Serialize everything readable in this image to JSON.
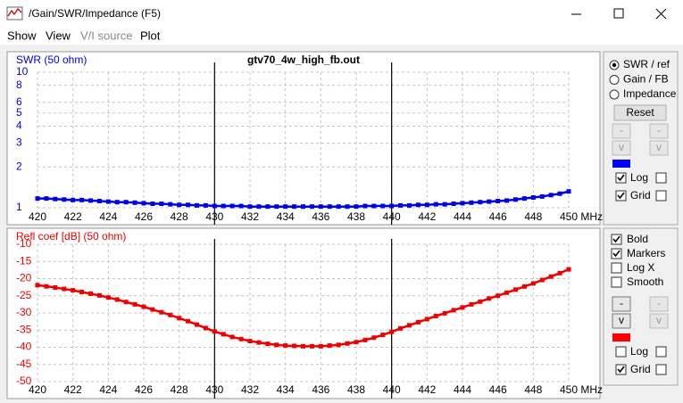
{
  "window": {
    "title": "/Gain/SWR/Impedance (F5)",
    "menu": [
      "Show",
      "View",
      "V/I source",
      "Plot"
    ],
    "controls_top": {
      "radios": [
        "SWR / ref",
        "Gain / FB",
        "Impedance"
      ],
      "selected": 0,
      "reset": "Reset",
      "buttons": [
        "-",
        "-",
        "v",
        "v"
      ],
      "color": "#0000ff",
      "log_label": "Log",
      "log": [
        true,
        false
      ],
      "grid_label": "Grid",
      "grid": [
        true,
        false
      ]
    },
    "controls_bottom": {
      "checks": [
        {
          "label": "Bold",
          "checked": true
        },
        {
          "label": "Markers",
          "checked": true
        },
        {
          "label": "Log X",
          "checked": false
        },
        {
          "label": "Smooth",
          "checked": false
        }
      ],
      "buttons": [
        "-",
        "-",
        "v",
        "v"
      ],
      "color": "#ff0000",
      "log_label": "Log",
      "log": [
        false,
        false
      ],
      "grid_label": "Grid",
      "grid": [
        true,
        false
      ]
    }
  },
  "chart_data": [
    {
      "type": "line",
      "title": "gtv70_4w_high_fb.out",
      "y_label": "SWR (50 ohm)",
      "x": [
        420,
        420.5,
        421,
        421.5,
        422,
        422.5,
        423,
        423.5,
        424,
        424.5,
        425,
        425.5,
        426,
        426.5,
        427,
        427.5,
        428,
        428.5,
        429,
        429.5,
        430,
        430.5,
        431,
        431.5,
        432,
        432.5,
        433,
        433.5,
        434,
        434.5,
        435,
        435.5,
        436,
        436.5,
        437,
        437.5,
        438,
        438.5,
        439,
        439.5,
        440,
        440.5,
        441,
        441.5,
        442,
        442.5,
        443,
        443.5,
        444,
        444.5,
        445,
        445.5,
        446,
        446.5,
        447,
        447.5,
        448,
        448.5,
        449,
        449.5,
        450
      ],
      "series": [
        {
          "color": "#0000e6",
          "values": [
            1.17,
            1.17,
            1.16,
            1.15,
            1.14,
            1.14,
            1.13,
            1.12,
            1.11,
            1.1,
            1.1,
            1.09,
            1.08,
            1.07,
            1.07,
            1.06,
            1.05,
            1.05,
            1.04,
            1.04,
            1.03,
            1.03,
            1.03,
            1.03,
            1.02,
            1.02,
            1.02,
            1.02,
            1.02,
            1.02,
            1.02,
            1.02,
            1.02,
            1.02,
            1.02,
            1.02,
            1.02,
            1.03,
            1.03,
            1.03,
            1.03,
            1.04,
            1.04,
            1.05,
            1.05,
            1.06,
            1.06,
            1.07,
            1.08,
            1.09,
            1.1,
            1.11,
            1.12,
            1.13,
            1.15,
            1.17,
            1.19,
            1.21,
            1.24,
            1.27,
            1.32
          ]
        }
      ],
      "xlim": [
        420,
        450
      ],
      "xticks": [
        420,
        422,
        424,
        426,
        428,
        430,
        432,
        434,
        436,
        438,
        440,
        442,
        444,
        446,
        448,
        {
          "value": 450,
          "label": "450 MHz"
        }
      ],
      "ylim": [
        1,
        10
      ],
      "yticks": [
        1,
        2,
        3,
        4,
        5,
        6,
        8,
        10
      ],
      "log_y": true,
      "grid": true,
      "marker_lines": [
        430,
        440
      ]
    },
    {
      "type": "line",
      "y_label": "Refl coef [dB] (50 ohm)",
      "x": [
        420,
        420.5,
        421,
        421.5,
        422,
        422.5,
        423,
        423.5,
        424,
        424.5,
        425,
        425.5,
        426,
        426.5,
        427,
        427.5,
        428,
        428.5,
        429,
        429.5,
        430,
        430.5,
        431,
        431.5,
        432,
        432.5,
        433,
        433.5,
        434,
        434.5,
        435,
        435.5,
        436,
        436.5,
        437,
        437.5,
        438,
        438.5,
        439,
        439.5,
        440,
        440.5,
        441,
        441.5,
        442,
        442.5,
        443,
        443.5,
        444,
        444.5,
        445,
        445.5,
        446,
        446.5,
        447,
        447.5,
        448,
        448.5,
        449,
        449.5,
        450
      ],
      "series": [
        {
          "color": "#ee0000",
          "values": [
            -21.9,
            -22.25,
            -22.6,
            -23.0,
            -23.4,
            -23.9,
            -24.4,
            -24.9,
            -25.5,
            -26.1,
            -26.8,
            -27.5,
            -28.2,
            -29.0,
            -29.8,
            -30.6,
            -31.5,
            -32.4,
            -33.4,
            -34.4,
            -35.4,
            -36.2,
            -37.0,
            -37.6,
            -38.2,
            -38.6,
            -39.0,
            -39.3,
            -39.5,
            -39.6,
            -39.7,
            -39.7,
            -39.7,
            -39.5,
            -39.3,
            -38.9,
            -38.5,
            -37.9,
            -37.2,
            -36.4,
            -35.5,
            -34.5,
            -33.6,
            -32.7,
            -31.8,
            -30.9,
            -30.1,
            -29.2,
            -28.4,
            -27.5,
            -26.7,
            -25.8,
            -25.0,
            -24.1,
            -23.2,
            -22.3,
            -21.4,
            -20.4,
            -19.4,
            -18.4,
            -17.3
          ]
        }
      ],
      "xlim": [
        420,
        450
      ],
      "xticks": [
        420,
        422,
        424,
        426,
        428,
        430,
        432,
        434,
        436,
        438,
        440,
        442,
        444,
        446,
        448,
        {
          "value": 450,
          "label": "450 MHz"
        }
      ],
      "ylim": [
        -50,
        -10
      ],
      "yticks": [
        -50,
        -45,
        -40,
        -35,
        -30,
        -25,
        -20,
        -15,
        -10
      ],
      "log_y": false,
      "grid": true,
      "marker_lines": [
        430,
        440
      ]
    }
  ]
}
